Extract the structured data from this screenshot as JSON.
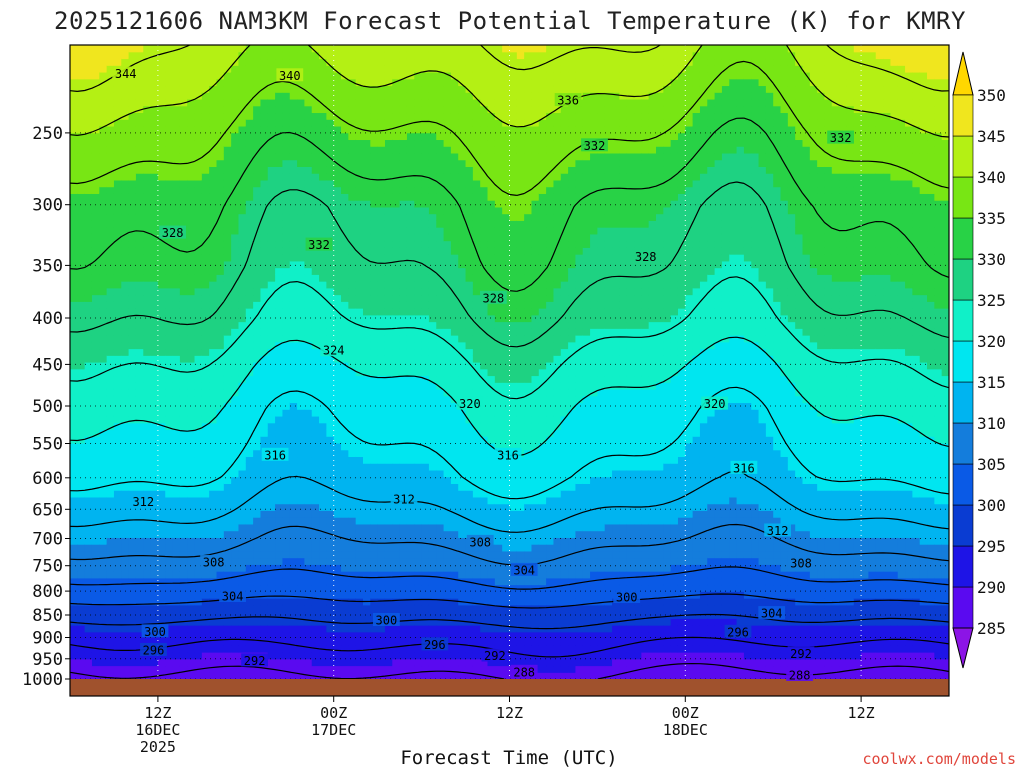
{
  "chart_data": {
    "type": "heatmap",
    "title": "2025121606 NAM3KM Forecast Potential Temperature (K) for KMRY",
    "xlabel": "Forecast Time (UTC)",
    "ylabel": "",
    "credit": "coolwx.com/models",
    "y_axis": {
      "unit": "hPa",
      "range": [
        1000,
        200
      ],
      "ticks": [
        250,
        300,
        350,
        400,
        450,
        500,
        550,
        600,
        650,
        700,
        750,
        800,
        850,
        900,
        950,
        1000
      ]
    },
    "x_axis": {
      "unit": "forecast hour",
      "range": [
        0,
        60
      ],
      "ticks": [
        {
          "hour": 6,
          "lines": [
            "12Z",
            "16DEC",
            "2025"
          ]
        },
        {
          "hour": 18,
          "lines": [
            "00Z",
            "17DEC"
          ]
        },
        {
          "hour": 30,
          "lines": [
            "12Z"
          ]
        },
        {
          "hour": 42,
          "lines": [
            "00Z",
            "18DEC"
          ]
        },
        {
          "hour": 54,
          "lines": [
            "12Z"
          ]
        }
      ]
    },
    "colorbar": {
      "levels": [
        285,
        290,
        295,
        300,
        305,
        310,
        315,
        320,
        325,
        330,
        335,
        340,
        345,
        350
      ],
      "colors": [
        "#8c14e6",
        "#5a0af0",
        "#1e14e6",
        "#0a3cd2",
        "#0a5ae6",
        "#147ddc",
        "#00b4f0",
        "#00e6f0",
        "#10f0c8",
        "#1ed282",
        "#28d246",
        "#78e614",
        "#b4f014",
        "#f0e61e",
        "#ffd700"
      ]
    },
    "contour_levels": [
      288,
      292,
      296,
      300,
      304,
      308,
      312,
      316,
      320,
      324,
      328,
      332,
      336,
      340,
      344
    ],
    "profile_pressure": [
      1000,
      950,
      900,
      850,
      800,
      750,
      700,
      650,
      600,
      550,
      500,
      450,
      400,
      350,
      300,
      250,
      200
    ],
    "profile_theta_start": [
      287,
      290,
      293,
      297,
      302,
      306,
      309,
      312,
      315,
      317,
      319,
      322,
      326,
      329,
      331,
      336,
      343
    ],
    "contour_labels": [
      {
        "value": "344",
        "hour": 3.8,
        "p": 215
      },
      {
        "value": "340",
        "hour": 15.0,
        "p": 216
      },
      {
        "value": "336",
        "hour": 34.0,
        "p": 230
      },
      {
        "value": "332",
        "hour": 35.8,
        "p": 258
      },
      {
        "value": "332",
        "hour": 52.6,
        "p": 253
      },
      {
        "value": "328",
        "hour": 7.0,
        "p": 322
      },
      {
        "value": "332",
        "hour": 17.0,
        "p": 332
      },
      {
        "value": "328",
        "hour": 39.3,
        "p": 342
      },
      {
        "value": "328",
        "hour": 28.9,
        "p": 380
      },
      {
        "value": "324",
        "hour": 18.0,
        "p": 434
      },
      {
        "value": "320",
        "hour": 27.3,
        "p": 497
      },
      {
        "value": "320",
        "hour": 44.0,
        "p": 497
      },
      {
        "value": "316",
        "hour": 14.0,
        "p": 566
      },
      {
        "value": "316",
        "hour": 29.9,
        "p": 566
      },
      {
        "value": "316",
        "hour": 46.0,
        "p": 585
      },
      {
        "value": "312",
        "hour": 5.0,
        "p": 637
      },
      {
        "value": "312",
        "hour": 22.8,
        "p": 633
      },
      {
        "value": "312",
        "hour": 48.3,
        "p": 686
      },
      {
        "value": "308",
        "hour": 28.0,
        "p": 706
      },
      {
        "value": "308",
        "hour": 9.8,
        "p": 743
      },
      {
        "value": "308",
        "hour": 49.9,
        "p": 745
      },
      {
        "value": "304",
        "hour": 31.0,
        "p": 758
      },
      {
        "value": "304",
        "hour": 11.1,
        "p": 810
      },
      {
        "value": "304",
        "hour": 47.9,
        "p": 846
      },
      {
        "value": "300",
        "hour": 38.0,
        "p": 812
      },
      {
        "value": "300",
        "hour": 21.6,
        "p": 861
      },
      {
        "value": "300",
        "hour": 5.8,
        "p": 886
      },
      {
        "value": "296",
        "hour": 5.7,
        "p": 929
      },
      {
        "value": "296",
        "hour": 24.9,
        "p": 916
      },
      {
        "value": "296",
        "hour": 45.6,
        "p": 887
      },
      {
        "value": "292",
        "hour": 12.6,
        "p": 954
      },
      {
        "value": "292",
        "hour": 29.0,
        "p": 942
      },
      {
        "value": "292",
        "hour": 49.9,
        "p": 937
      },
      {
        "value": "288",
        "hour": 31.0,
        "p": 982
      },
      {
        "value": "288",
        "hour": 49.8,
        "p": 990
      }
    ],
    "colors": {
      "ground": "#a0522d",
      "frame": "#000000",
      "grid": "#808080",
      "contour": "#000000",
      "title": "#222222",
      "credit": "#e0463c"
    }
  }
}
